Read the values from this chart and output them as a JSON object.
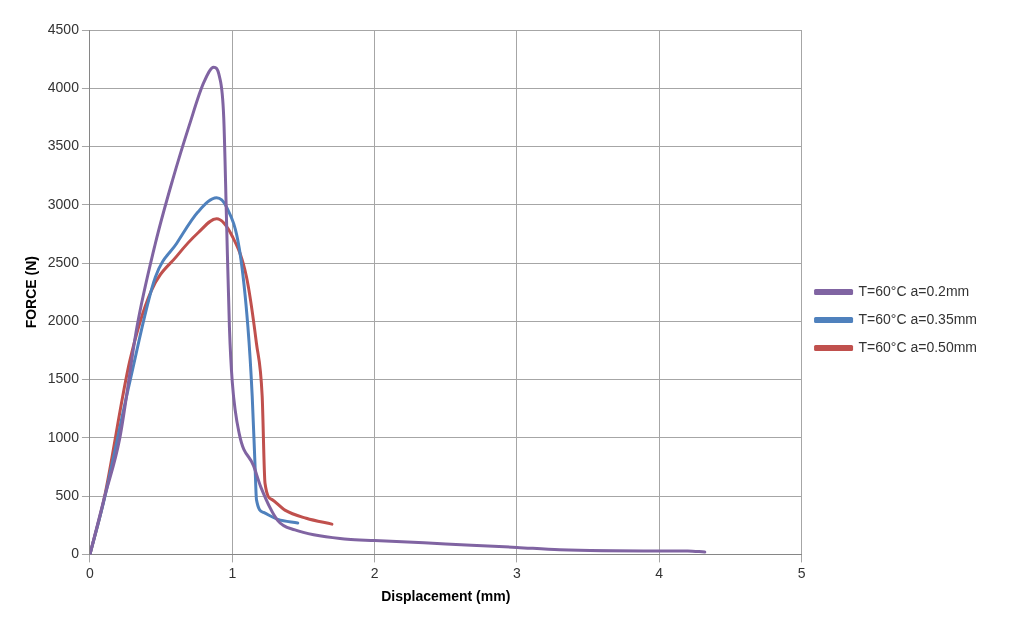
{
  "chart_data": {
    "type": "line",
    "xlabel": "Displacement (mm)",
    "ylabel": "FORCE (N)",
    "xlim": [
      0,
      5
    ],
    "xticks": [
      0,
      1,
      2,
      3,
      4,
      5
    ],
    "ylim": [
      0,
      4500
    ],
    "yticks": [
      0,
      500,
      1000,
      1500,
      2000,
      2500,
      3000,
      3500,
      4000,
      4500
    ],
    "grid": true,
    "legend": "right",
    "marker": "none",
    "line_style": "solid",
    "series": [
      {
        "name": "T=60°C a=0.2mm",
        "color": "#8064a2",
        "x": [
          0,
          0.1,
          0.21,
          0.33,
          0.46,
          0.58,
          0.7,
          0.8,
          0.87,
          0.91,
          0.94,
          0.96,
          0.98,
          1.0,
          1.05,
          1.15,
          1.2,
          1.32,
          1.44,
          1.81,
          2.0,
          2.5,
          3.0,
          3.3,
          4.0,
          4.2,
          4.32
        ],
        "values": [
          0,
          480,
          1000,
          1950,
          2670,
          3210,
          3690,
          4050,
          4180,
          4100,
          3750,
          2850,
          1950,
          1480,
          1030,
          760,
          580,
          290,
          210,
          130,
          120,
          90,
          60,
          40,
          30,
          30,
          20
        ]
      },
      {
        "name": "T=60°C a=0.35mm",
        "color": "#4f81bd",
        "x": [
          0,
          0.1,
          0.28,
          0.46,
          0.61,
          0.76,
          0.89,
          0.96,
          1.05,
          1.11,
          1.14,
          1.16,
          1.17,
          1.22,
          1.32,
          1.46
        ],
        "values": [
          0,
          470,
          1480,
          2380,
          2670,
          2940,
          3060,
          2980,
          2620,
          1950,
          1360,
          760,
          470,
          360,
          300,
          270
        ]
      },
      {
        "name": "T=60°C a=0.50mm",
        "color": "#c0504d",
        "x": [
          0,
          0.1,
          0.28,
          0.43,
          0.61,
          0.76,
          0.89,
          1.0,
          1.1,
          1.17,
          1.21,
          1.23,
          1.28,
          1.37,
          1.52,
          1.7
        ],
        "values": [
          0,
          480,
          1660,
          2260,
          2560,
          2760,
          2880,
          2730,
          2380,
          1810,
          1360,
          610,
          470,
          380,
          310,
          260
        ]
      }
    ]
  }
}
